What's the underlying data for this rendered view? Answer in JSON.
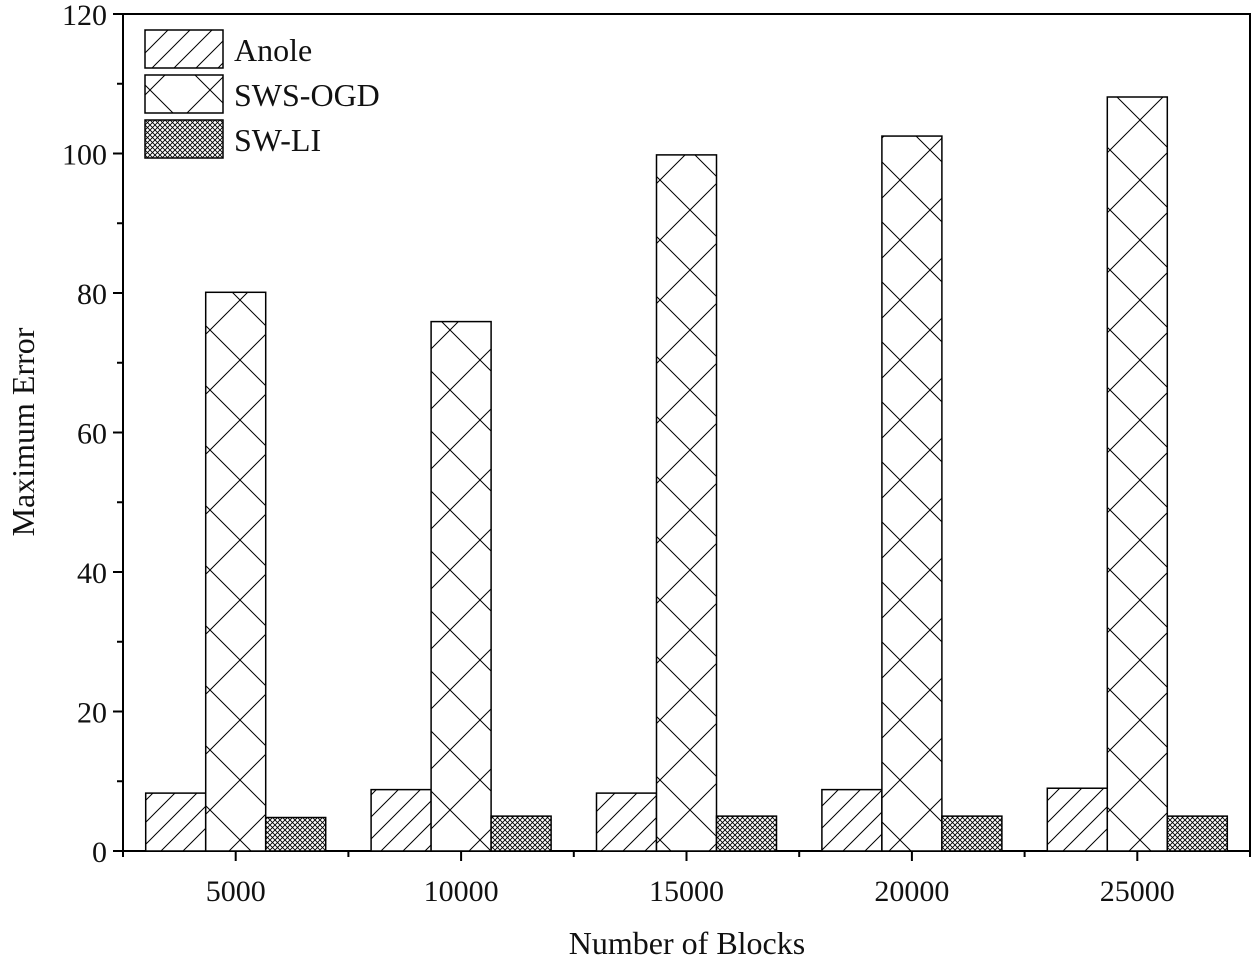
{
  "chart_data": {
    "type": "bar",
    "title": "",
    "xlabel": "Number of Blocks",
    "ylabel": "Maximum Error",
    "categories": [
      "5000",
      "10000",
      "15000",
      "20000",
      "25000"
    ],
    "ylim": [
      0,
      120
    ],
    "yticks": [
      0,
      20,
      40,
      60,
      80,
      100,
      120
    ],
    "legend_position": "top-left",
    "grid": false,
    "series": [
      {
        "name": "Anole",
        "pattern": "diagonal-hatch",
        "values": [
          8.3,
          8.8,
          8.3,
          8.8,
          9.0
        ]
      },
      {
        "name": "SWS-OGD",
        "pattern": "cross-hatch",
        "values": [
          80.1,
          75.9,
          99.8,
          102.5,
          108.1
        ]
      },
      {
        "name": "SW-LI",
        "pattern": "dense-crosshatch",
        "values": [
          4.8,
          5.0,
          5.0,
          5.0,
          5.0
        ]
      }
    ],
    "colors": {
      "stroke": "#000000",
      "fill": "#ffffff"
    }
  }
}
